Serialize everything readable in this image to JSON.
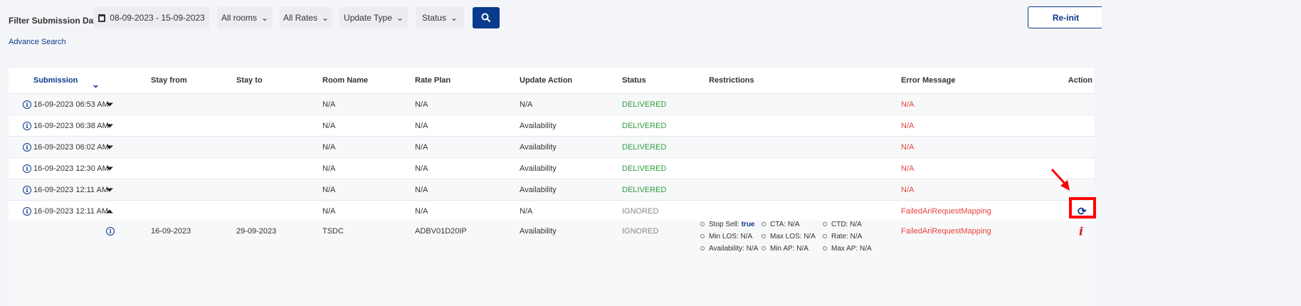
{
  "filters": {
    "label": "Filter Submission Date",
    "date_range": "08-09-2023 - 15-09-2023",
    "rooms": "All rooms",
    "rates": "All Rates",
    "update_type": "Update Type",
    "status": "Status",
    "advance_search": "Advance Search",
    "reinit": "Re-init"
  },
  "table": {
    "headers": {
      "submission": "Submission",
      "stay_from": "Stay from",
      "stay_to": "Stay to",
      "room": "Room Name",
      "rate": "Rate Plan",
      "update": "Update Action",
      "status": "Status",
      "restrictions": "Restrictions",
      "error": "Error Message",
      "action": "Action"
    },
    "rows": [
      {
        "submission": "16-09-2023 06:53 AM",
        "room": "N/A",
        "rate": "N/A",
        "update": "N/A",
        "status": "DELIVERED",
        "error": "N/A"
      },
      {
        "submission": "16-09-2023 06:38 AM",
        "room": "N/A",
        "rate": "N/A",
        "update": "Availability",
        "status": "DELIVERED",
        "error": "N/A"
      },
      {
        "submission": "16-09-2023 06:02 AM",
        "room": "N/A",
        "rate": "N/A",
        "update": "Availability",
        "status": "DELIVERED",
        "error": "N/A"
      },
      {
        "submission": "16-09-2023 12:30 AM",
        "room": "N/A",
        "rate": "N/A",
        "update": "Availability",
        "status": "DELIVERED",
        "error": "N/A"
      },
      {
        "submission": "16-09-2023 12:11 AM",
        "room": "N/A",
        "rate": "N/A",
        "update": "Availability",
        "status": "DELIVERED",
        "error": "N/A"
      },
      {
        "submission": "16-09-2023 12:11 AM",
        "room": "N/A",
        "rate": "N/A",
        "update": "N/A",
        "status": "IGNORED",
        "error": "FailedAriRequestMapping"
      }
    ],
    "detail": {
      "stay_from": "16-09-2023",
      "stay_to": "29-09-2023",
      "room": "TSDC",
      "rate": "ADBV01D20IP",
      "update": "Availability",
      "status": "IGNORED",
      "error": "FailedAriRequestMapping",
      "restrictions": {
        "stop_sell_label": "Stop Sell:",
        "stop_sell_value": "true",
        "cta": "CTA: N/A",
        "ctd": "CTD: N/A",
        "min_los": "Min LOS: N/A",
        "max_los": "Max LOS: N/A",
        "rate": "Rate: N/A",
        "availability": "Availability: N/A",
        "min_ap": "Min AP: N/A",
        "max_ap": "Max AP: N/A"
      }
    }
  },
  "colors": {
    "primary": "#0a3a8c",
    "delivered": "#2e9e3e",
    "error": "#e8443a",
    "highlight": "#ff0000"
  }
}
